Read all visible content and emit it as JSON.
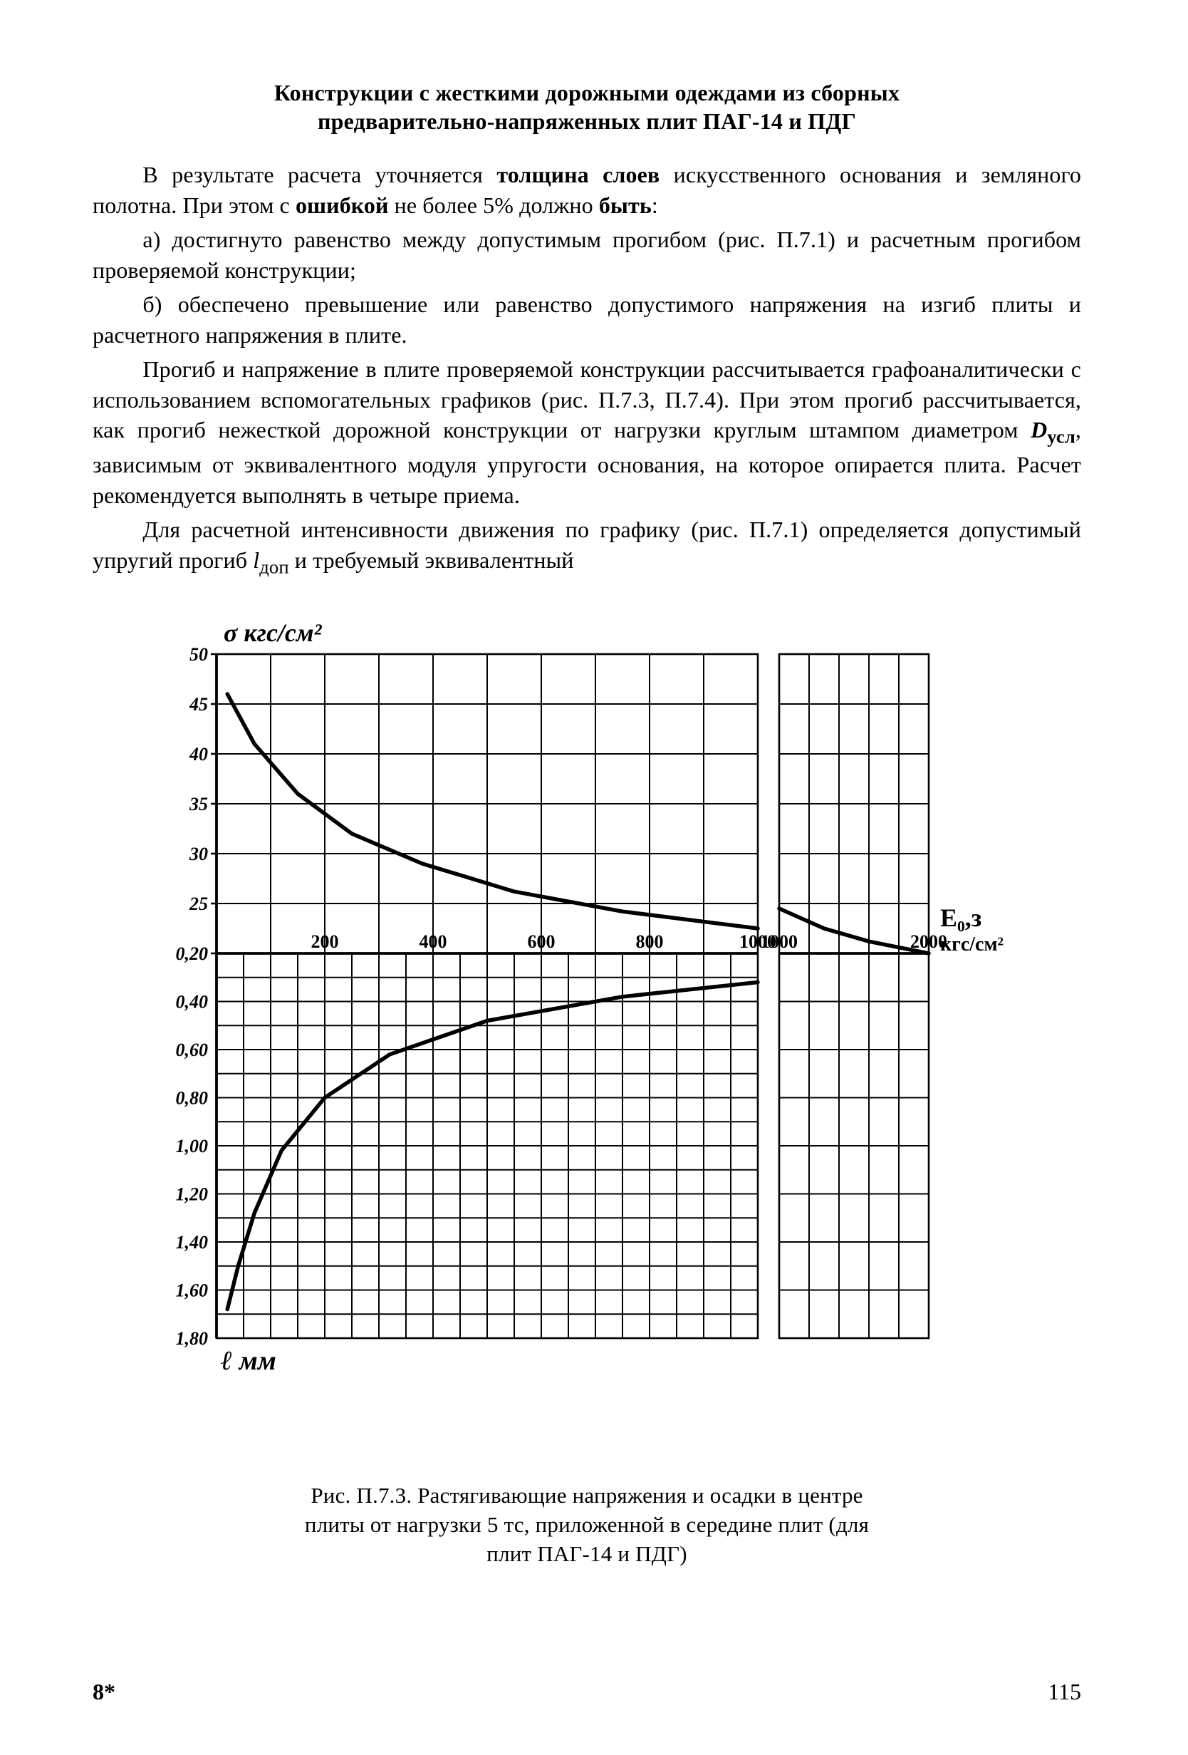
{
  "title_line1": "Конструкции с жесткими дорожными одеждами из сборных",
  "title_line2": "предварительно-напряженных плит ПАГ-14 и ПДГ",
  "paragraphs": {
    "p1a": "В результате расчета уточняется ",
    "p1b": "толщина слоев",
    "p1c": " искусственного осно­вания и земляного полотна. При этом с ",
    "p1d": "ошибкой",
    "p1e": " не более 5% должно ",
    "p1f": "быть",
    "p1g": ":",
    "p2a": "а) достигнуто равенство между допустимым прогибом ",
    "p2b": "(рис. П.7.1) и расчетным прогибом проверяемой конструкции;",
    "p3a": "б) обеспечено превышение или равенство допустимого напряжения на изгиб плиты и расчетного напряжения в плите.",
    "p4": "Прогиб и напряжение в плите проверяемой конструкции рассчиты­вается графоаналитически с использованием вспомогательных графиков (рис. П.7.3, П.7.4). При этом прогиб рассчитывается, как прогиб нежест­кой дорожной конструкции от нагрузки круглым штампом диаметром ",
    "p4b": "D",
    "p4c": "усл",
    "p4d": ", зависимым от эквивалентного модуля упругости основания, на кото­рое опирается плита. Расчет рекомендуется выполнять в четыре приема.",
    "p5a": "Для расчетной интенсивности движения по графику (рис. П.7.1) оп­ределяется допустимый упругий прогиб ",
    "p5b": "l",
    "p5c": "доп",
    "p5d": " и требуемый эквивалентный"
  },
  "chart": {
    "type": "dual-panel-line",
    "background_color": "#ffffff",
    "line_color": "#000000",
    "grid_color": "#000000",
    "curve_color": "#000000",
    "curve_width": 5.5,
    "grid_width": 2.0,
    "axis_width": 2.6,
    "tick_font_pt": 26,
    "label_font_pt": 36,
    "panelA": {
      "x_min": 0,
      "x_max": 1000,
      "x_ticks": [
        200,
        400,
        600,
        800,
        1000
      ],
      "y_min": 15,
      "y_max": 50,
      "y_ticks": [
        20,
        25,
        30,
        35,
        40,
        45,
        50
      ],
      "x_grid_step": 100,
      "y_grid_step": 5,
      "curve": [
        [
          20,
          46
        ],
        [
          70,
          41
        ],
        [
          150,
          36
        ],
        [
          250,
          32
        ],
        [
          380,
          29
        ],
        [
          550,
          26.2
        ],
        [
          750,
          24.2
        ],
        [
          1000,
          22.5
        ]
      ]
    },
    "panelA2": {
      "x_min": 1000,
      "x_max": 2000,
      "x_ticks": [
        1000,
        2000
      ],
      "y_min": 15,
      "y_max": 50,
      "x_grid_step": 200,
      "y_grid_step": 5,
      "curve": [
        [
          1000,
          24.5
        ],
        [
          1300,
          22.5
        ],
        [
          1600,
          21.2
        ],
        [
          2000,
          20
        ]
      ]
    },
    "panelB": {
      "x_min": 0,
      "x_max": 1000,
      "y_min": 0.2,
      "y_max": 1.8,
      "y_ticks": [
        0.2,
        0.4,
        0.6,
        0.8,
        1.0,
        1.2,
        1.4,
        1.6,
        1.8
      ],
      "x_grid_step": 50,
      "y_grid_step": 0.1,
      "curve": [
        [
          20,
          1.68
        ],
        [
          40,
          1.5
        ],
        [
          70,
          1.28
        ],
        [
          120,
          1.02
        ],
        [
          200,
          0.8
        ],
        [
          320,
          0.62
        ],
        [
          500,
          0.48
        ],
        [
          750,
          0.38
        ],
        [
          1000,
          0.32
        ]
      ]
    },
    "panelB2": {
      "x_min": 1000,
      "x_max": 2000,
      "y_min": 0.2,
      "y_max": 1.8,
      "x_grid_step": 200,
      "y_grid_step": 0.2
    },
    "labels": {
      "y_top": "σ кгс/см²",
      "x_right": "E₀,з",
      "x_right_unit": "кгс/см²",
      "y_bottom": "ℓ мм",
      "ytick_bottom": [
        "0,20",
        "0,40",
        "0,60",
        "0,80",
        "1,00",
        "1,20",
        "1,40",
        "1,60",
        "1,80"
      ]
    }
  },
  "caption": {
    "c1": "Рис. П.7.3. Растягивающие напряжения и осадки в центре",
    "c2": "плиты от нагрузки 5 тс, приложенной в середине плит (для",
    "c3": "плит ПАГ-14 и ПДГ)"
  },
  "footer": {
    "sig": "8*",
    "page_no": "115"
  }
}
